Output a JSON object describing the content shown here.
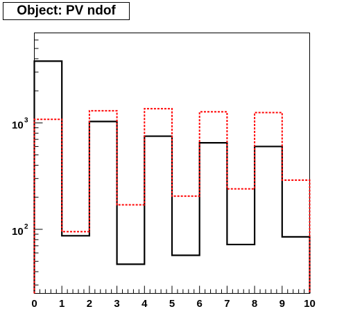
{
  "chart_data": {
    "type": "bar",
    "title": "Object: PV ndof",
    "xlabel": "",
    "ylabel": "",
    "xlim": [
      0,
      10
    ],
    "ylim": [
      25,
      7000
    ],
    "yscale": "log",
    "x_tick_labels": [
      "0",
      "1",
      "2",
      "3",
      "4",
      "5",
      "6",
      "7",
      "8",
      "9",
      "10"
    ],
    "y_tick_labels": [
      {
        "base": "10",
        "exp": "2"
      },
      {
        "base": "10",
        "exp": "3"
      }
    ],
    "bin_edges": [
      0,
      1,
      2,
      3,
      4,
      5,
      6,
      7,
      8,
      9,
      10
    ],
    "series": [
      {
        "color": "#000000",
        "style": "solid",
        "values": [
          3800,
          87,
          1030,
          47,
          750,
          57,
          650,
          72,
          600,
          85
        ]
      },
      {
        "color": "#ff0000",
        "style": "dashed",
        "values": [
          1080,
          95,
          1300,
          170,
          1360,
          205,
          1270,
          240,
          1250,
          290
        ]
      }
    ],
    "grid": false,
    "legend": "none"
  }
}
